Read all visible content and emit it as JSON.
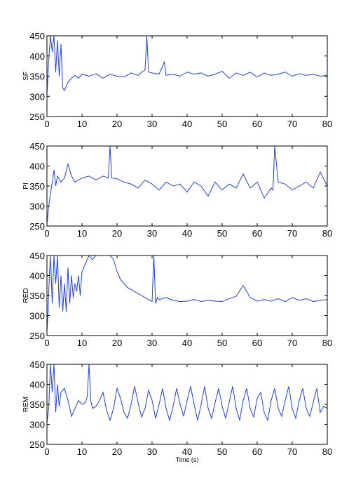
{
  "chart_data": [
    {
      "type": "line",
      "ylabel": "SF",
      "xlabel": "",
      "xlim": [
        0,
        80
      ],
      "ylim": [
        250,
        450
      ],
      "xticks": [
        "0",
        "10",
        "20",
        "30",
        "40",
        "50",
        "60",
        "70",
        "80"
      ],
      "yticks": [
        "250",
        "300",
        "350",
        "400",
        "450"
      ],
      "color": "#1f3fe8",
      "series": [
        {
          "x": [
            0,
            0.5,
            1,
            1.5,
            2,
            2.5,
            3,
            3.5,
            4,
            4.5,
            5,
            6,
            7,
            8,
            9,
            10,
            12,
            14,
            16,
            18,
            20,
            22,
            24,
            26,
            27,
            28,
            28.5,
            29,
            30,
            32,
            33.5,
            34,
            36,
            38,
            40,
            42,
            44,
            46,
            48,
            50,
            52,
            54,
            56,
            58,
            60,
            62,
            64,
            66,
            68,
            70,
            72,
            74,
            76,
            78,
            80
          ],
          "y": [
            305,
            390,
            450,
            410,
            450,
            360,
            440,
            350,
            430,
            320,
            315,
            335,
            345,
            352,
            345,
            355,
            350,
            356,
            345,
            355,
            350,
            348,
            358,
            352,
            360,
            365,
            450,
            360,
            358,
            355,
            385,
            352,
            355,
            350,
            360,
            355,
            358,
            350,
            355,
            362,
            345,
            358,
            352,
            360,
            348,
            358,
            352,
            355,
            360,
            350,
            356,
            352,
            355,
            350,
            352
          ]
        }
      ]
    },
    {
      "type": "line",
      "ylabel": "PI",
      "xlabel": "",
      "xlim": [
        0,
        80
      ],
      "ylim": [
        250,
        450
      ],
      "xticks": [
        "0",
        "10",
        "20",
        "30",
        "40",
        "50",
        "60",
        "70",
        "80"
      ],
      "yticks": [
        "250",
        "300",
        "350",
        "400",
        "450"
      ],
      "color": "#1f3fe8",
      "series": [
        {
          "x": [
            0,
            0.5,
            1,
            1.5,
            2,
            2.5,
            3,
            4,
            5,
            6,
            7,
            8,
            10,
            12,
            14,
            16,
            17.5,
            18,
            18.5,
            20,
            22,
            24,
            26,
            28,
            30,
            32,
            34,
            36,
            38,
            40,
            42,
            44,
            46,
            48,
            50,
            52,
            54,
            56,
            58,
            60,
            62,
            64,
            64.5,
            65,
            66,
            68,
            70,
            72,
            74,
            76,
            78,
            80
          ],
          "y": [
            255,
            300,
            330,
            360,
            390,
            350,
            375,
            360,
            370,
            405,
            375,
            360,
            370,
            375,
            365,
            375,
            370,
            450,
            370,
            368,
            360,
            355,
            345,
            365,
            355,
            340,
            360,
            350,
            355,
            335,
            360,
            350,
            325,
            360,
            340,
            355,
            345,
            380,
            345,
            360,
            320,
            345,
            340,
            450,
            360,
            355,
            340,
            350,
            360,
            345,
            385,
            350
          ]
        }
      ]
    },
    {
      "type": "line",
      "ylabel": "RED",
      "xlabel": "",
      "xlim": [
        0,
        80
      ],
      "ylim": [
        250,
        450
      ],
      "xticks": [
        "0",
        "10",
        "20",
        "30",
        "40",
        "50",
        "60",
        "70",
        "80"
      ],
      "yticks": [
        "250",
        "300",
        "350",
        "400",
        "450"
      ],
      "color": "#1f3fe8",
      "series": [
        {
          "x": [
            0,
            0.3,
            0.7,
            1,
            1.5,
            2,
            2.5,
            3,
            3.5,
            4,
            4.5,
            5,
            5.5,
            6,
            6.5,
            7,
            7.5,
            8,
            8.5,
            9,
            9.5,
            10,
            11,
            12,
            13,
            14,
            16,
            17,
            18,
            19,
            20,
            21,
            22,
            23,
            24,
            25,
            26,
            27,
            28,
            29,
            30,
            30.5,
            31,
            31.5,
            32,
            34,
            36,
            38,
            40,
            42,
            44,
            46,
            48,
            50,
            52,
            54,
            56,
            58,
            60,
            62,
            64,
            66,
            68,
            70,
            72,
            74,
            76,
            78,
            80
          ],
          "y": [
            260,
            310,
            400,
            450,
            330,
            450,
            380,
            450,
            320,
            400,
            310,
            380,
            310,
            420,
            330,
            400,
            345,
            380,
            360,
            400,
            350,
            410,
            430,
            450,
            440,
            450,
            450,
            450,
            450,
            440,
            410,
            390,
            380,
            370,
            365,
            360,
            355,
            350,
            345,
            340,
            335,
            450,
            330,
            345,
            340,
            345,
            338,
            335,
            336,
            340,
            335,
            338,
            336,
            335,
            342,
            348,
            375,
            345,
            336,
            340,
            336,
            342,
            335,
            345,
            338,
            342,
            335,
            338,
            340
          ]
        }
      ]
    },
    {
      "type": "line",
      "ylabel": "REM",
      "xlabel": "Time (s)",
      "xlim": [
        0,
        80
      ],
      "ylim": [
        250,
        450
      ],
      "xticks": [
        "0",
        "10",
        "20",
        "30",
        "40",
        "50",
        "60",
        "70",
        "80"
      ],
      "yticks": [
        "250",
        "300",
        "350",
        "400",
        "450"
      ],
      "color": "#1f3fe8",
      "series": [
        {
          "x": [
            0,
            0.5,
            1,
            1.5,
            2,
            2.5,
            3,
            3.5,
            4,
            5,
            6,
            7,
            8,
            9,
            10,
            11,
            11.5,
            12,
            12.5,
            13,
            14,
            15,
            16,
            17,
            18,
            19,
            20,
            21,
            22,
            23,
            24,
            25,
            26,
            27,
            28,
            29,
            30,
            31,
            32,
            33,
            34,
            35,
            36,
            37,
            38,
            39,
            40,
            41,
            42,
            43,
            44,
            45,
            46,
            47,
            48,
            49,
            50,
            51,
            52,
            53,
            54,
            55,
            56,
            57,
            58,
            59,
            60,
            61,
            62,
            63,
            64,
            65,
            66,
            67,
            68,
            69,
            70,
            71,
            72,
            73,
            74,
            75,
            76,
            77,
            78,
            79,
            80
          ],
          "y": [
            305,
            340,
            450,
            380,
            450,
            330,
            400,
            345,
            380,
            390,
            360,
            320,
            340,
            360,
            350,
            355,
            370,
            450,
            360,
            340,
            345,
            360,
            380,
            335,
            310,
            340,
            390,
            365,
            330,
            315,
            350,
            395,
            355,
            318,
            340,
            385,
            360,
            315,
            350,
            390,
            340,
            310,
            345,
            390,
            350,
            320,
            360,
            395,
            350,
            310,
            350,
            395,
            340,
            315,
            355,
            390,
            345,
            315,
            355,
            395,
            340,
            310,
            360,
            390,
            340,
            318,
            365,
            380,
            330,
            310,
            360,
            390,
            340,
            320,
            360,
            395,
            340,
            315,
            360,
            390,
            340,
            320,
            355,
            390,
            330,
            345,
            340
          ]
        }
      ]
    }
  ]
}
